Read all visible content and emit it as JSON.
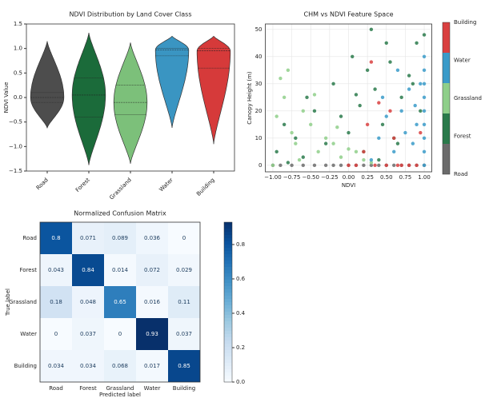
{
  "chart_data": [
    {
      "type": "violin",
      "title": "NDVI Distribution by Land Cover Class",
      "y_label": "NDVI Value",
      "categories": [
        "Road",
        "Forest",
        "Grassland",
        "Water",
        "Building"
      ],
      "colors": [
        "#4d4d4d",
        "#1b6b3a",
        "#7cc07a",
        "#3a95c2",
        "#d63a3a"
      ],
      "min": [
        -0.62,
        -1.38,
        -1.35,
        -0.62,
        -0.95
      ],
      "q1": [
        -0.1,
        -0.4,
        -0.35,
        0.85,
        0.6
      ],
      "median": [
        0,
        0.05,
        -0.1,
        0.97,
        0.95
      ],
      "q3": [
        0.1,
        0.4,
        0.25,
        1.0,
        1.0
      ],
      "max": [
        1.15,
        1.32,
        1.12,
        1.25,
        1.25
      ],
      "ylim": [
        -1.5,
        1.5
      ],
      "yticks": [
        {
          "value": -1.5,
          "label": "−1.5"
        },
        {
          "value": -1,
          "label": "−1.0"
        },
        {
          "value": -0.5,
          "label": "−0.5"
        },
        {
          "value": 0,
          "label": "0.0"
        },
        0.5,
        {
          "value": 1,
          "label": "1.0"
        },
        1.5
      ]
    },
    {
      "type": "scatter",
      "title": "CHM vs NDVI Feature Space",
      "x_label": "NDVI",
      "y_label": "Canopy Height (m)",
      "xlim": [
        -1.1,
        1.1
      ],
      "ylim": [
        -2.4,
        52
      ],
      "xticks": [
        {
          "value": -1,
          "label": "−1.00"
        },
        {
          "value": -0.75,
          "label": "−0.75"
        },
        {
          "value": -0.5,
          "label": "−0.50"
        },
        {
          "value": -0.25,
          "label": "−0.25"
        },
        {
          "value": 0,
          "label": "0.00"
        },
        0.25,
        {
          "value": 0.5,
          "label": "0.50"
        },
        0.75,
        {
          "value": 1,
          "label": "1.00"
        }
      ],
      "yticks": [
        0,
        10,
        20,
        30,
        40,
        50
      ],
      "grid": true,
      "series": [
        {
          "name": "Road",
          "color": "#6b6b6b",
          "x": [
            -1,
            -0.9,
            -0.75,
            -0.6,
            -0.45,
            -0.3,
            -0.2,
            -0.1,
            0,
            0.1,
            0.2,
            0.3,
            0.4,
            0.5,
            0.6,
            0.7,
            0.8,
            0.9,
            1
          ],
          "values": [
            0,
            0,
            0,
            0,
            0,
            0,
            0,
            0,
            0,
            0,
            0,
            0,
            0,
            0,
            0,
            0,
            0,
            0,
            0
          ]
        },
        {
          "name": "Forest",
          "color": "#2a7a4b",
          "x": [
            -0.95,
            -0.85,
            -0.7,
            -0.55,
            -0.45,
            -0.3,
            -0.2,
            -0.1,
            0,
            0.05,
            0.15,
            0.25,
            0.3,
            0.35,
            0.45,
            0.55,
            0.6,
            0.7,
            0.8,
            0.9,
            0.95,
            1,
            -0.6,
            0.2,
            0.4,
            0.65,
            -0.8,
            0.1,
            0.5,
            0.85
          ],
          "values": [
            5,
            15,
            10,
            25,
            20,
            8,
            30,
            18,
            12,
            40,
            22,
            35,
            50,
            28,
            15,
            38,
            10,
            25,
            33,
            45,
            20,
            48,
            3,
            5,
            2,
            8,
            1,
            26,
            45,
            30
          ]
        },
        {
          "name": "Grassland",
          "color": "#8fcf8a",
          "x": [
            -1,
            -0.95,
            -0.9,
            -0.8,
            -0.75,
            -0.7,
            -0.6,
            -0.5,
            -0.4,
            -0.3,
            -0.2,
            -0.1,
            0,
            0.1,
            0.2,
            0.3,
            -0.85,
            -0.65,
            -0.45,
            -0.15
          ],
          "values": [
            0,
            18,
            32,
            35,
            12,
            8,
            20,
            15,
            5,
            10,
            8,
            3,
            6,
            5,
            2,
            1,
            25,
            2,
            26,
            14
          ]
        },
        {
          "name": "Water",
          "color": "#3a9bc9",
          "x": [
            0.3,
            0.4,
            0.5,
            0.6,
            0.7,
            0.75,
            0.8,
            0.85,
            0.9,
            0.95,
            1,
            1,
            1,
            1,
            1,
            1,
            1,
            1,
            1,
            0.45,
            0.65,
            0.88
          ],
          "values": [
            2,
            10,
            18,
            5,
            20,
            12,
            28,
            8,
            15,
            30,
            0,
            5,
            10,
            15,
            20,
            25,
            30,
            35,
            40,
            25,
            35,
            22
          ]
        },
        {
          "name": "Building",
          "color": "#d94040",
          "x": [
            0,
            0.1,
            0.2,
            0.3,
            0.35,
            0.5,
            0.55,
            0.6,
            0.7,
            0.8,
            0.9,
            0.95,
            0.25,
            0.65,
            0.4
          ],
          "values": [
            0,
            0,
            5,
            38,
            0,
            0,
            20,
            10,
            0,
            0,
            0,
            12,
            15,
            0,
            23
          ]
        }
      ]
    },
    {
      "type": "heatmap",
      "title": "Normalized Confusion Matrix",
      "x_label": "Predicted label",
      "y_label": "True label",
      "categories": [
        "Road",
        "Forest",
        "Grassland",
        "Water",
        "Building"
      ],
      "matrix": [
        [
          0.8,
          0.071,
          0.089,
          0.036,
          0
        ],
        [
          0.043,
          0.84,
          0.014,
          0.072,
          0.029
        ],
        [
          0.18,
          0.048,
          0.65,
          0.016,
          0.11
        ],
        [
          0,
          0.037,
          0,
          0.93,
          0.037
        ],
        [
          0.034,
          0.034,
          0.068,
          0.017,
          0.85
        ]
      ],
      "colorbar_lim": [
        0,
        0.93
      ],
      "colorbar_ticks": [
        {
          "value": 0,
          "label": "0.0"
        },
        0.2,
        0.4,
        0.6,
        0.8
      ]
    }
  ]
}
